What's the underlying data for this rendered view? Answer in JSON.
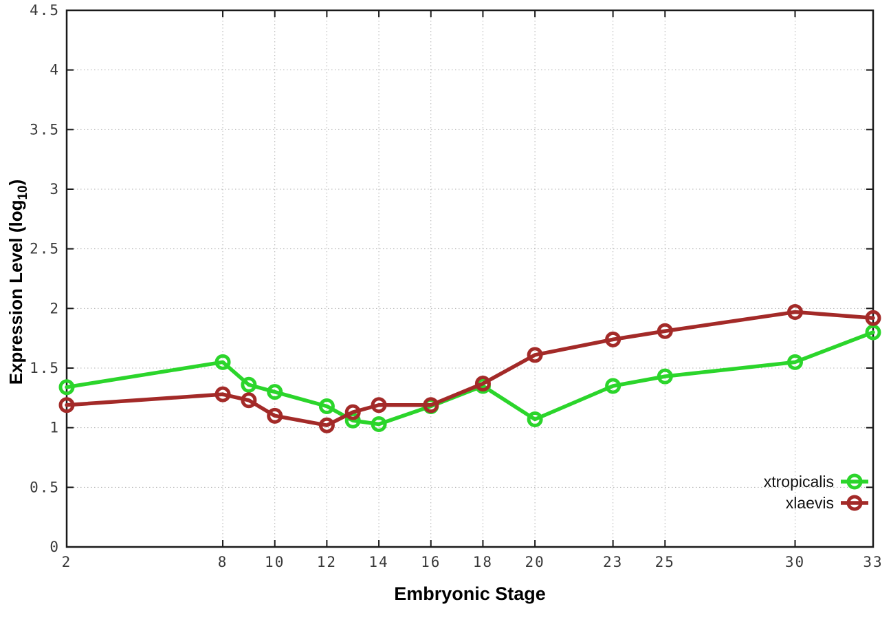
{
  "chart_data": {
    "type": "line",
    "title": "",
    "xlabel": "Embryonic Stage",
    "ylabel": {
      "text": "Expression Level (log10)",
      "pre": "Expression Level (log",
      "sub": "10",
      "post": ")"
    },
    "x": [
      2,
      8,
      9,
      10,
      12,
      13,
      14,
      16,
      18,
      20,
      23,
      25,
      30,
      33
    ],
    "series": [
      {
        "name": "xtropicalis",
        "color": "#2bd52b",
        "values": [
          1.34,
          1.55,
          1.36,
          1.3,
          1.18,
          1.06,
          1.03,
          1.18,
          1.35,
          1.07,
          1.35,
          1.43,
          1.55,
          1.8
        ]
      },
      {
        "name": "xlaevis",
        "color": "#a32a28",
        "values": [
          1.19,
          1.28,
          1.23,
          1.1,
          1.02,
          1.13,
          1.19,
          1.19,
          1.37,
          1.61,
          1.74,
          1.81,
          1.97,
          1.92
        ]
      }
    ],
    "xlim": [
      2,
      33
    ],
    "ylim": [
      0,
      4.5
    ],
    "x_ticks": [
      2,
      8,
      10,
      12,
      14,
      16,
      18,
      20,
      23,
      25,
      30,
      33
    ],
    "y_ticks": [
      0,
      0.5,
      1,
      1.5,
      2,
      2.5,
      3,
      3.5,
      4,
      4.5
    ],
    "grid": true,
    "legend_position": "bottom-right"
  },
  "colors": {
    "background": "#ffffff",
    "plot_border": "#1a1a1a",
    "grid": "#b0b0b0",
    "tick_text": "#383838",
    "label_text": "#000000",
    "series_green": "#2bd52b",
    "series_red": "#a32a28"
  }
}
